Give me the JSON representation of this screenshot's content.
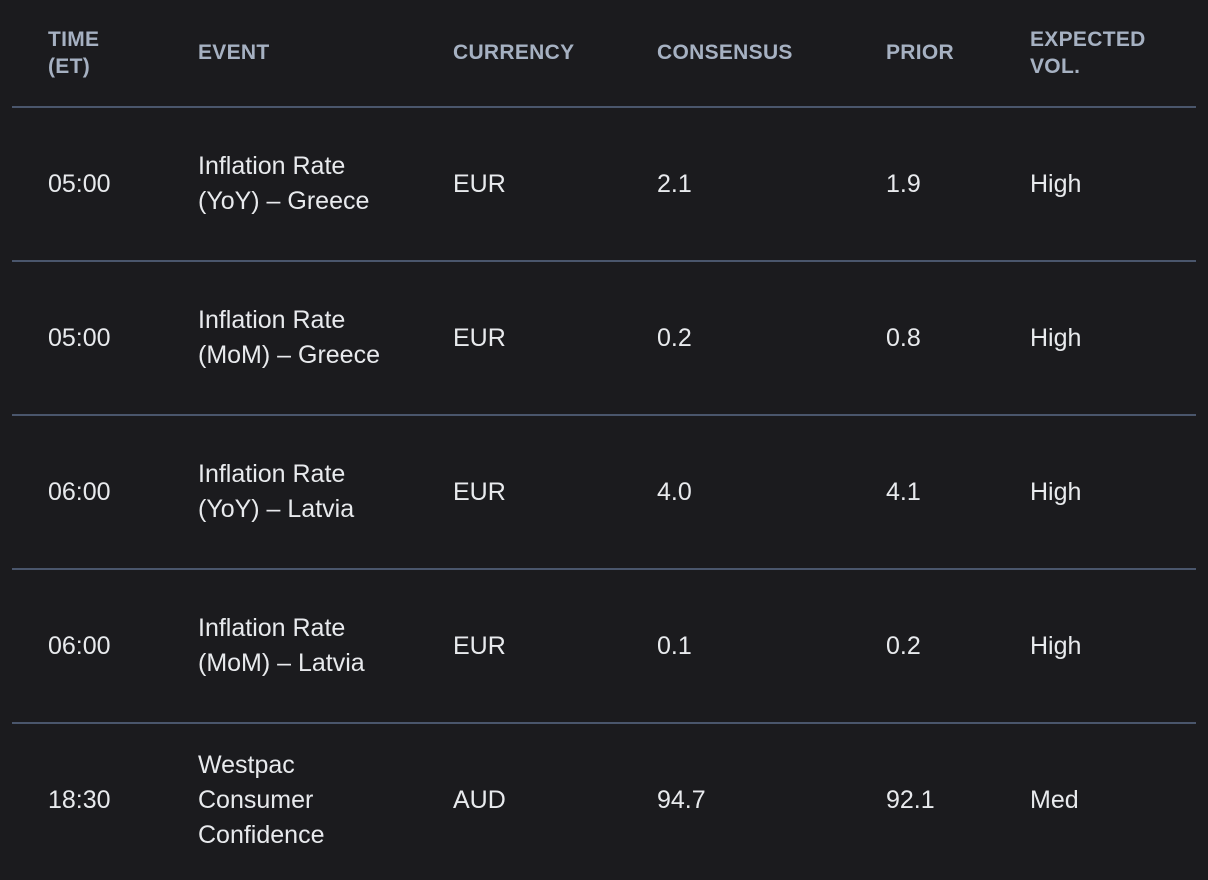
{
  "colors": {
    "background": "#1b1b1e",
    "header_text": "#a6b1c2",
    "body_text": "#e8eaed",
    "divider": "#4a566c"
  },
  "table": {
    "columns": [
      {
        "key": "time",
        "label": "TIME (ET)"
      },
      {
        "key": "event",
        "label": "EVENT"
      },
      {
        "key": "currency",
        "label": "CURRENCY"
      },
      {
        "key": "consensus",
        "label": "CONSENSUS"
      },
      {
        "key": "prior",
        "label": "PRIOR"
      },
      {
        "key": "expected_vol",
        "label": "EXPECTED VOL."
      }
    ],
    "rows": [
      {
        "time": "05:00",
        "event": "Inflation Rate (YoY) – Greece",
        "currency": "EUR",
        "consensus": "2.1",
        "prior": "1.9",
        "expected_vol": "High"
      },
      {
        "time": "05:00",
        "event": "Inflation Rate (MoM) – Greece",
        "currency": "EUR",
        "consensus": "0.2",
        "prior": "0.8",
        "expected_vol": "High"
      },
      {
        "time": "06:00",
        "event": "Inflation Rate (YoY) – Latvia",
        "currency": "EUR",
        "consensus": "4.0",
        "prior": "4.1",
        "expected_vol": "High"
      },
      {
        "time": "06:00",
        "event": "Inflation Rate (MoM) – Latvia",
        "currency": "EUR",
        "consensus": "0.1",
        "prior": "0.2",
        "expected_vol": "High"
      },
      {
        "time": "18:30",
        "event": "Westpac Consumer Confidence",
        "currency": "AUD",
        "consensus": "94.7",
        "prior": "92.1",
        "expected_vol": "Med"
      }
    ]
  }
}
